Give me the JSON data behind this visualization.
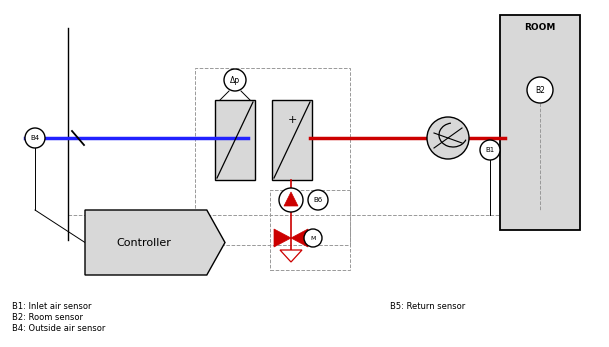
{
  "bg_color": "#ffffff",
  "line_color_main": "#000000",
  "blue_line_color": "#2222ff",
  "red_line_color": "#cc0000",
  "gray_fill": "#c8c8c8",
  "light_gray_fill": "#d8d8d8",
  "dashed_color": "#999999",
  "title_text": "ROOM",
  "b1_label": "B1",
  "b2_label": "B2",
  "b4_label": "B4",
  "b5_label": "B5",
  "b6_label": "B6",
  "m_label": "M",
  "dp_label": "Δp",
  "plus_label": "+",
  "controller_label": "Controller",
  "legend_b1": "B1: Inlet air sensor",
  "legend_b2": "B2: Room sensor",
  "legend_b4": "B4: Outside air sensor",
  "legend_b5": "B5: Return sensor",
  "figsize": [
    6.09,
    3.47
  ],
  "dpi": 100
}
